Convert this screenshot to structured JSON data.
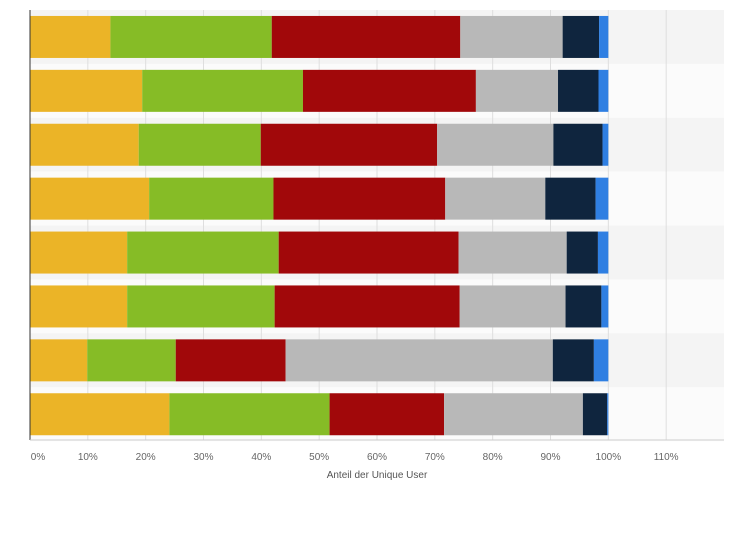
{
  "chart_data": {
    "type": "bar",
    "orientation": "horizontal",
    "stacked": true,
    "title": "",
    "xlabel": "Anteil der Unique User",
    "ylabel": "",
    "xlim": [
      0,
      120
    ],
    "xticks": [
      0,
      10,
      20,
      30,
      40,
      50,
      60,
      70,
      80,
      90,
      100,
      110
    ],
    "tick_format": "{v}%",
    "grid": true,
    "legend": "none",
    "categories": [
      "",
      "",
      "",
      "",
      "",
      "",
      "",
      ""
    ],
    "series": [
      {
        "color": "#ebb427",
        "values": [
          13.9,
          19.4,
          18.8,
          20.6,
          16.8,
          16.8,
          9.9,
          24.1
        ]
      },
      {
        "color": "#86bc26",
        "values": [
          27.9,
          27.8,
          21.1,
          21.5,
          26.2,
          25.5,
          15.3,
          27.7
        ]
      },
      {
        "color": "#a1080a",
        "values": [
          32.6,
          29.9,
          30.5,
          29.7,
          31.1,
          32.0,
          19.0,
          19.8
        ]
      },
      {
        "color": "#b8b8b8",
        "values": [
          17.7,
          14.2,
          20.1,
          17.3,
          18.7,
          18.3,
          46.2,
          24.0
        ]
      },
      {
        "color": "#0f253e",
        "values": [
          6.3,
          7.0,
          8.5,
          8.7,
          5.4,
          6.2,
          7.1,
          4.2
        ]
      },
      {
        "color": "#2f7fe2",
        "values": [
          1.6,
          1.7,
          1.0,
          2.2,
          1.8,
          1.2,
          2.5,
          0.2
        ]
      }
    ]
  }
}
